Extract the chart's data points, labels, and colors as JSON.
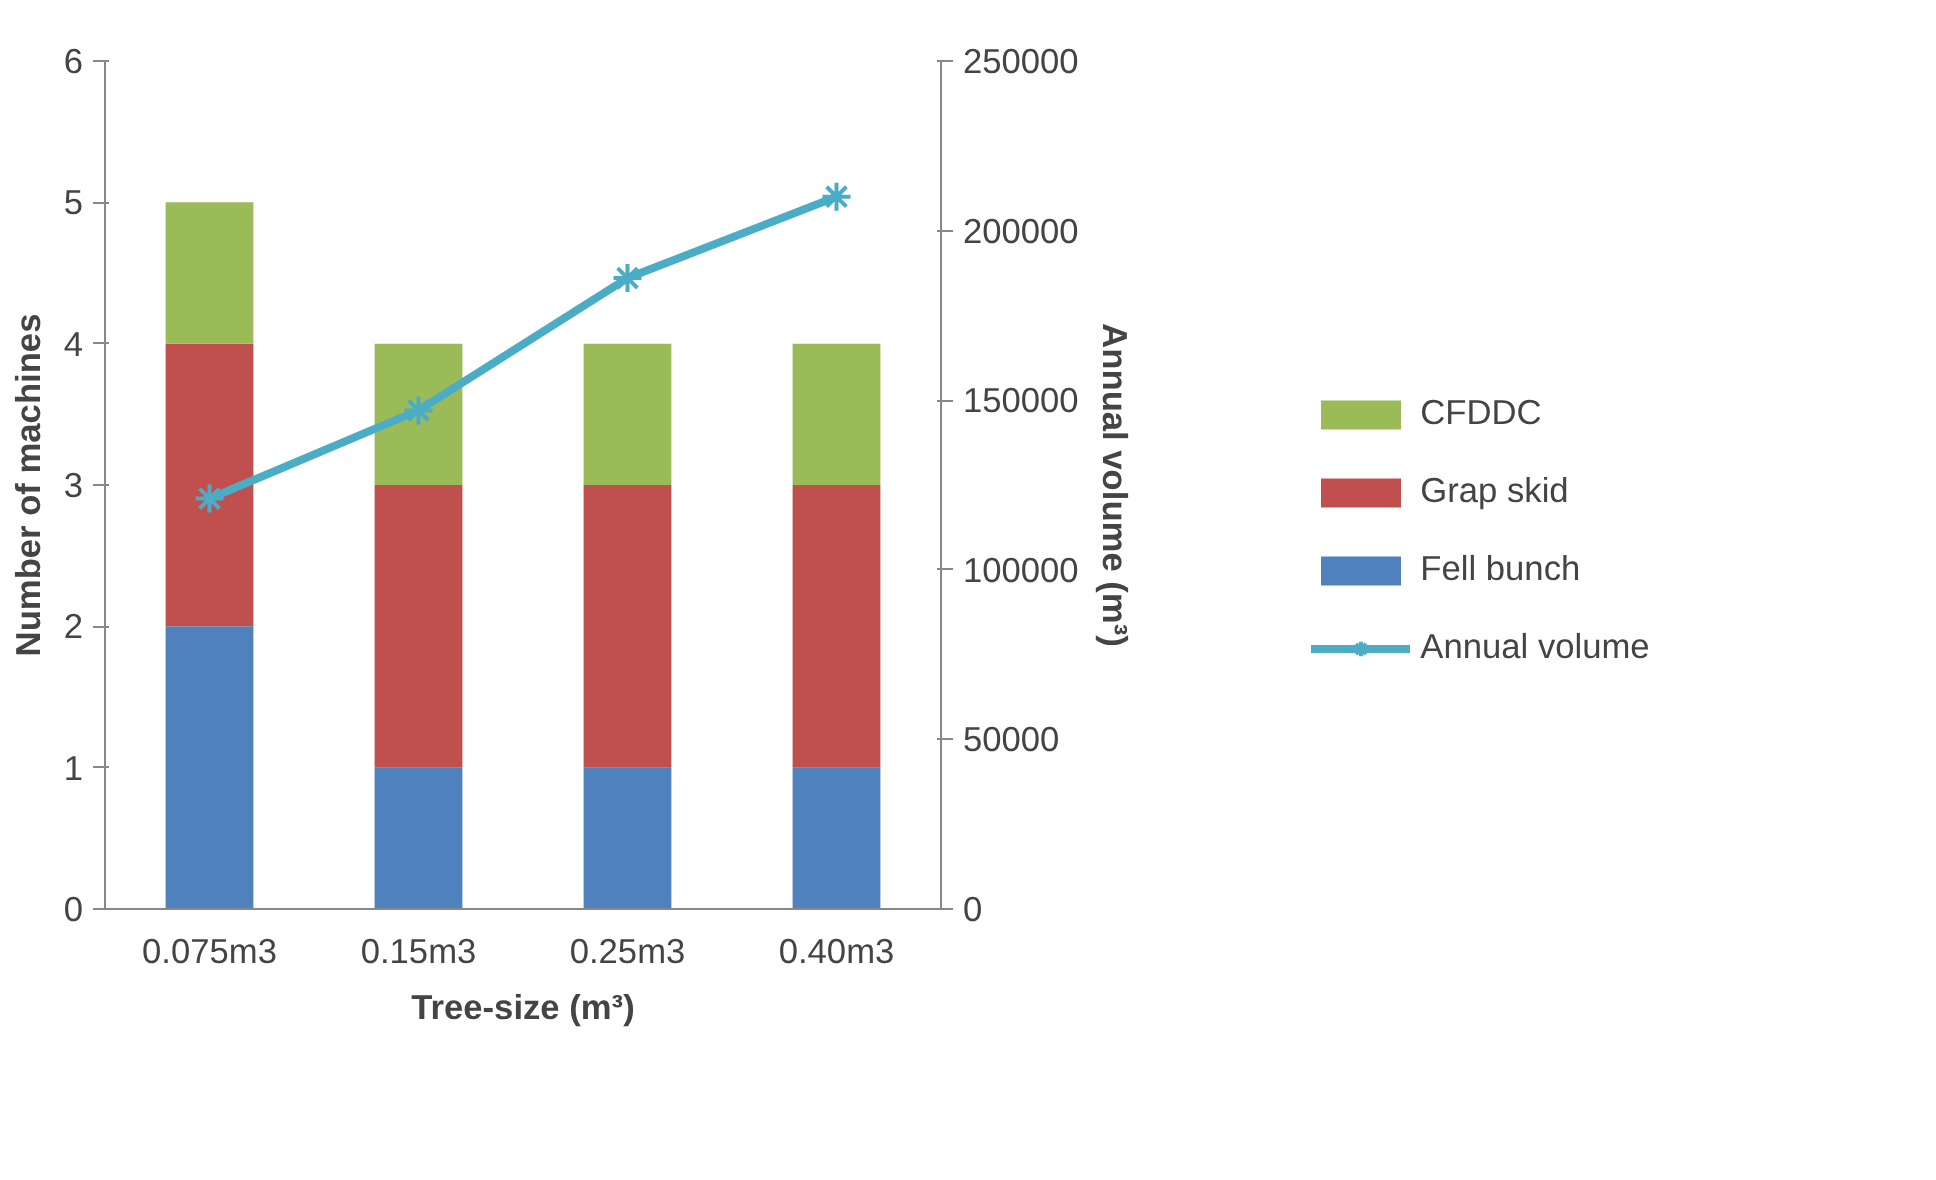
{
  "chart_data": {
    "type": "bar",
    "stacked": true,
    "categories": [
      "0.075m3",
      "0.15m3",
      "0.25m3",
      "0.40m3"
    ],
    "xlabel": "Tree-size (m³)",
    "ylabel": "Number of machines",
    "y2label": "Annual volume (m³)",
    "series": [
      {
        "name": "Fell bunch",
        "color": "#4f81bd",
        "values": [
          2,
          1,
          1,
          1
        ]
      },
      {
        "name": "Grap skid",
        "color": "#c0504d",
        "values": [
          2,
          2,
          2,
          2
        ]
      },
      {
        "name": "CFDDC",
        "color": "#9bbb59",
        "values": [
          1,
          1,
          1,
          1
        ]
      },
      {
        "name": "Annual volume",
        "type": "line",
        "axis": "y2",
        "marker": "cross",
        "color": "#4bacc6",
        "values": [
          121000,
          147000,
          186000,
          210000
        ]
      }
    ],
    "ylim": [
      0,
      6
    ],
    "yticks": [
      0,
      1,
      2,
      3,
      4,
      5,
      6
    ],
    "y2lim": [
      0,
      250000
    ],
    "y2ticks": [
      0,
      50000,
      100000,
      150000,
      200000,
      250000
    ],
    "legend": "right"
  }
}
